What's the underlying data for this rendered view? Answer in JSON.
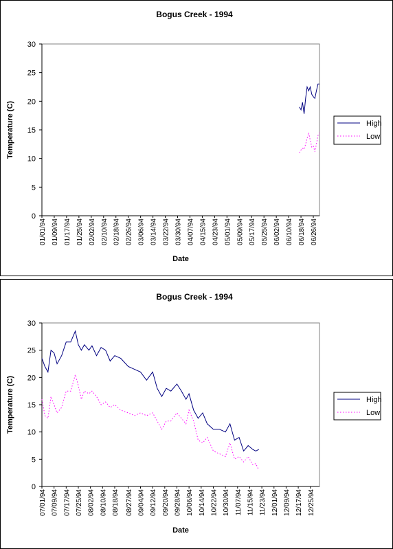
{
  "chart_data": [
    {
      "type": "line",
      "title": "Bogus Creek - 1994",
      "xlabel": "Date",
      "ylabel": "Temperature (C)",
      "ylim": [
        0,
        30
      ],
      "yticks": [
        "0",
        "5",
        "10",
        "15",
        "20",
        "25",
        "30"
      ],
      "xticks": [
        "01/01/94",
        "01/09/94",
        "01/17/94",
        "01/25/94",
        "02/02/94",
        "02/10/94",
        "02/18/94",
        "02/26/94",
        "03/06/94",
        "03/14/94",
        "03/22/94",
        "03/30/94",
        "04/07/94",
        "04/15/94",
        "04/23/94",
        "05/01/94",
        "05/09/94",
        "05/17/94",
        "05/25/94",
        "06/02/94",
        "06/10/94",
        "06/18/94",
        "06/26/94"
      ],
      "x_start": "01/01/94",
      "x_end": "06/30/94",
      "grid": false,
      "legend": "right",
      "series": [
        {
          "name": "High",
          "color": "#000080",
          "style": "solid",
          "x": [
            "06/17/94",
            "06/18/94",
            "06/19/94",
            "06/20/94",
            "06/21/94",
            "06/22/94",
            "06/23/94",
            "06/24/94",
            "06/25/94",
            "06/26/94",
            "06/27/94",
            "06/28/94",
            "06/29/94",
            "06/30/94"
          ],
          "values": [
            19.0,
            18.5,
            19.8,
            17.8,
            20.5,
            22.5,
            21.8,
            22.5,
            21.2,
            20.8,
            20.5,
            21.8,
            23.0,
            23.0
          ]
        },
        {
          "name": "Low",
          "color": "#ff00ff",
          "style": "dotted",
          "x": [
            "06/17/94",
            "06/18/94",
            "06/19/94",
            "06/20/94",
            "06/21/94",
            "06/22/94",
            "06/23/94",
            "06/24/94",
            "06/25/94",
            "06/26/94",
            "06/27/94",
            "06/28/94",
            "06/29/94",
            "06/30/94"
          ],
          "values": [
            11.0,
            11.5,
            11.8,
            11.6,
            12.5,
            13.5,
            14.5,
            13.2,
            12.0,
            12.2,
            11.2,
            12.5,
            14.0,
            14.5
          ]
        }
      ]
    },
    {
      "type": "line",
      "title": "Bogus Creek - 1994",
      "xlabel": "Date",
      "ylabel": "Temperature (C)",
      "ylim": [
        0,
        30
      ],
      "yticks": [
        "0",
        "5",
        "10",
        "15",
        "20",
        "25",
        "30"
      ],
      "xticks": [
        "07/01/94",
        "07/09/94",
        "07/17/94",
        "07/25/94",
        "08/02/94",
        "08/10/94",
        "08/18/94",
        "08/27/94",
        "09/04/94",
        "09/12/94",
        "09/20/94",
        "09/28/94",
        "10/06/94",
        "10/14/94",
        "10/22/94",
        "10/30/94",
        "11/07/94",
        "11/15/94",
        "11/23/94",
        "12/01/94",
        "12/09/94",
        "12/17/94",
        "12/25/94"
      ],
      "x_start": "07/01/94",
      "x_end": "12/31/94",
      "grid": false,
      "legend": "right",
      "series": [
        {
          "name": "High",
          "color": "#000080",
          "style": "solid",
          "x": [
            "07/01/94",
            "07/03/94",
            "07/05/94",
            "07/07/94",
            "07/09/94",
            "07/11/94",
            "07/14/94",
            "07/17/94",
            "07/20/94",
            "07/23/94",
            "07/25/94",
            "07/27/94",
            "07/29/94",
            "08/01/94",
            "08/03/94",
            "08/06/94",
            "08/09/94",
            "08/12/94",
            "08/15/94",
            "08/18/94",
            "08/22/94",
            "08/27/94",
            "08/31/94",
            "09/04/94",
            "09/08/94",
            "09/12/94",
            "09/15/94",
            "09/18/94",
            "09/21/94",
            "09/24/94",
            "09/28/94",
            "10/01/94",
            "10/04/94",
            "10/06/94",
            "10/09/94",
            "10/12/94",
            "10/15/94",
            "10/18/94",
            "10/22/94",
            "10/26/94",
            "10/30/94",
            "11/02/94",
            "11/05/94",
            "11/08/94",
            "11/11/94",
            "11/14/94",
            "11/17/94",
            "11/19/94",
            "11/21/94"
          ],
          "values": [
            23.5,
            22.0,
            21.0,
            25.0,
            24.5,
            22.5,
            24.0,
            26.5,
            26.5,
            28.5,
            26.0,
            25.0,
            26.0,
            25.0,
            25.8,
            24.0,
            25.5,
            25.0,
            23.0,
            24.0,
            23.5,
            22.0,
            21.5,
            21.0,
            19.5,
            21.0,
            18.0,
            16.5,
            18.0,
            17.5,
            18.8,
            17.5,
            16.0,
            17.0,
            14.0,
            12.5,
            13.5,
            11.5,
            10.5,
            10.5,
            10.0,
            11.5,
            8.5,
            9.0,
            6.5,
            7.5,
            6.8,
            6.5,
            6.8
          ]
        },
        {
          "name": "Low",
          "color": "#ff00ff",
          "style": "dotted",
          "x": [
            "07/01/94",
            "07/03/94",
            "07/05/94",
            "07/07/94",
            "07/09/94",
            "07/11/94",
            "07/14/94",
            "07/17/94",
            "07/20/94",
            "07/23/94",
            "07/25/94",
            "07/27/94",
            "07/29/94",
            "08/01/94",
            "08/03/94",
            "08/06/94",
            "08/09/94",
            "08/12/94",
            "08/15/94",
            "08/18/94",
            "08/22/94",
            "08/27/94",
            "08/31/94",
            "09/04/94",
            "09/08/94",
            "09/12/94",
            "09/15/94",
            "09/18/94",
            "09/21/94",
            "09/24/94",
            "09/28/94",
            "10/01/94",
            "10/04/94",
            "10/06/94",
            "10/09/94",
            "10/12/94",
            "10/15/94",
            "10/18/94",
            "10/22/94",
            "10/26/94",
            "10/30/94",
            "11/02/94",
            "11/05/94",
            "11/08/94",
            "11/11/94",
            "11/14/94",
            "11/17/94",
            "11/19/94",
            "11/21/94"
          ],
          "values": [
            16.0,
            13.0,
            12.5,
            16.5,
            15.0,
            13.5,
            14.5,
            17.5,
            17.5,
            20.5,
            18.5,
            16.0,
            17.5,
            17.0,
            17.5,
            16.5,
            15.0,
            15.5,
            14.5,
            15.0,
            14.0,
            13.5,
            13.0,
            13.5,
            13.0,
            13.5,
            12.0,
            10.5,
            12.0,
            12.0,
            13.5,
            12.5,
            11.5,
            14.0,
            12.0,
            8.5,
            8.0,
            9.0,
            6.5,
            6.0,
            5.5,
            8.0,
            5.0,
            5.5,
            4.5,
            5.5,
            4.0,
            4.2,
            3.0
          ]
        }
      ]
    }
  ]
}
